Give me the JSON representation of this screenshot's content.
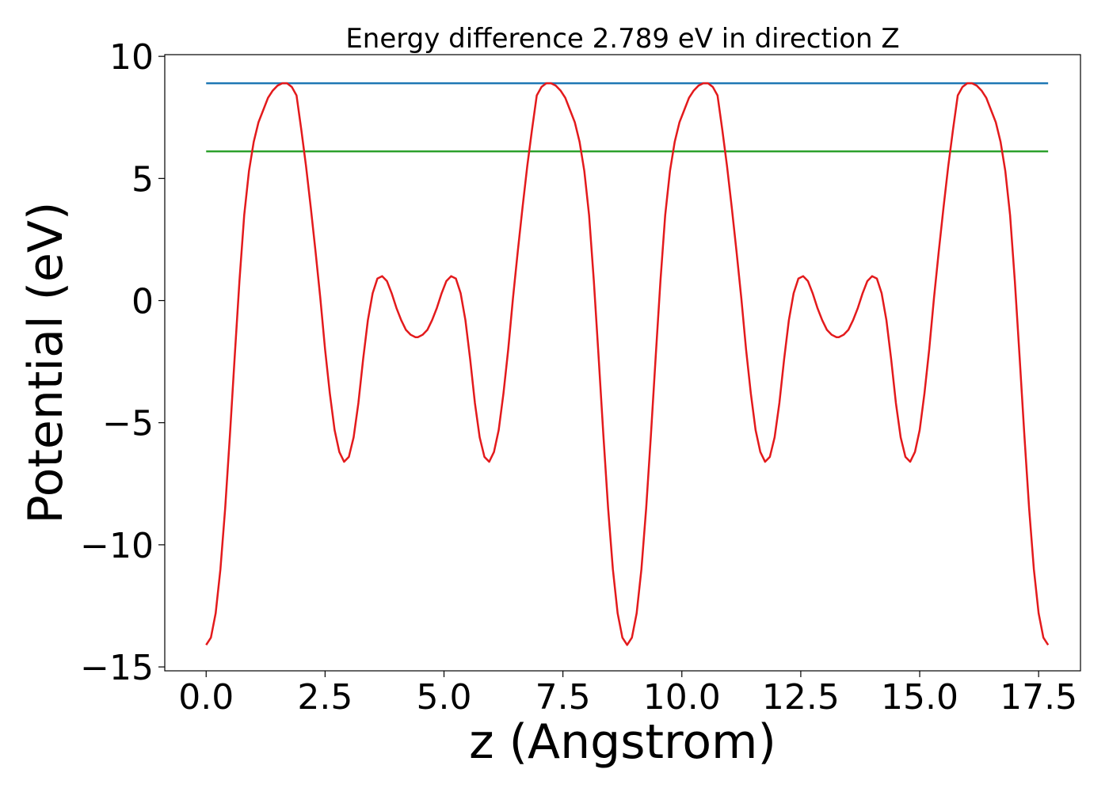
{
  "chart_data": {
    "type": "line",
    "title": "Energy difference 2.789 eV in direction Z",
    "xlabel": "z (Angstrom)",
    "ylabel": "Potential (eV)",
    "xlim": [
      -0.87,
      18.38
    ],
    "ylim": [
      -15.16,
      10.07
    ],
    "xticks": [
      {
        "value": 0,
        "label": "0.0"
      },
      2.5,
      {
        "value": 5,
        "label": "5.0"
      },
      7.5,
      {
        "value": 10,
        "label": "10.0"
      },
      12.5,
      {
        "value": 15,
        "label": "15.0"
      },
      17.5
    ],
    "yticks": [
      {
        "value": -15,
        "label": "−15"
      },
      {
        "value": -10,
        "label": "−10"
      },
      {
        "value": -5,
        "label": "−5"
      },
      0,
      5,
      10
    ],
    "grid": false,
    "series": [
      {
        "color": "#1f77b4",
        "x": [
          0,
          17.7
        ],
        "values": [
          8.9,
          8.9
        ]
      },
      {
        "color": "#2ca02c",
        "x": [
          0,
          17.7
        ],
        "values": [
          6.11,
          6.11
        ]
      },
      {
        "color": "#e31a1c",
        "x": [
          0,
          0.1,
          0.2,
          0.3,
          0.4,
          0.5,
          0.6,
          0.7,
          0.8,
          0.9,
          1.0,
          1.1,
          1.2,
          1.3,
          1.4,
          1.5,
          1.6,
          1.7,
          1.8,
          1.9,
          2.0,
          2.1,
          2.2,
          2.3,
          2.4,
          2.5,
          2.6,
          2.7,
          2.8,
          2.9,
          3.0,
          3.1,
          3.2,
          3.3,
          3.4,
          3.5,
          3.6,
          3.7,
          3.8,
          3.9,
          4.0,
          4.1,
          4.2,
          4.3,
          4.4,
          4.45,
          4.55,
          4.65,
          4.75,
          4.85,
          4.95,
          5.05,
          5.15,
          5.25,
          5.35,
          5.45,
          5.55,
          5.65,
          5.75,
          5.85,
          5.95,
          6.05,
          6.15,
          6.25,
          6.35,
          6.45,
          6.55,
          6.65,
          6.75,
          6.85,
          6.95,
          7.05,
          7.15,
          7.25,
          7.35,
          7.45,
          7.55,
          7.65,
          7.75,
          7.85,
          7.95,
          8.05,
          8.15,
          8.25,
          8.35,
          8.45,
          8.55,
          8.65,
          8.75,
          8.85,
          8.95,
          9.05,
          9.15,
          9.25,
          9.35,
          9.45,
          9.55,
          9.65,
          9.75,
          9.85,
          9.95,
          10.05,
          10.15,
          10.25,
          10.35,
          10.45,
          10.55,
          10.65,
          10.75,
          10.85,
          10.95,
          11.05,
          11.15,
          11.25,
          11.35,
          11.45,
          11.55,
          11.65,
          11.75,
          11.85,
          11.95,
          12.05,
          12.15,
          12.25,
          12.35,
          12.45,
          12.55,
          12.65,
          12.75,
          12.85,
          12.95,
          13.05,
          13.15,
          13.25,
          13.3,
          13.4,
          13.5,
          13.6,
          13.7,
          13.8,
          13.9,
          14.0,
          14.1,
          14.2,
          14.3,
          14.4,
          14.5,
          14.6,
          14.7,
          14.8,
          14.9,
          15.0,
          15.1,
          15.2,
          15.3,
          15.4,
          15.5,
          15.6,
          15.7,
          15.8,
          15.9,
          16.0,
          16.1,
          16.2,
          16.3,
          16.4,
          16.5,
          16.6,
          16.7,
          16.8,
          16.9,
          17.0,
          17.1,
          17.2,
          17.3,
          17.4,
          17.5,
          17.6,
          17.7
        ],
        "values": [
          -14.1,
          -13.8,
          -12.8,
          -11.0,
          -8.5,
          -5.5,
          -2.3,
          0.8,
          3.5,
          5.3,
          6.5,
          7.3,
          7.8,
          8.3,
          8.6,
          8.8,
          8.9,
          8.9,
          8.75,
          8.4,
          7.0,
          5.5,
          3.8,
          2.0,
          0.1,
          -2.0,
          -3.8,
          -5.3,
          -6.2,
          -6.6,
          -6.4,
          -5.6,
          -4.2,
          -2.4,
          -0.8,
          0.3,
          0.9,
          1.0,
          0.8,
          0.3,
          -0.3,
          -0.8,
          -1.2,
          -1.4,
          -1.5,
          -1.5,
          -1.4,
          -1.2,
          -0.8,
          -0.3,
          0.3,
          0.8,
          1.0,
          0.9,
          0.3,
          -0.8,
          -2.4,
          -4.2,
          -5.6,
          -6.4,
          -6.6,
          -6.2,
          -5.3,
          -3.8,
          -2.0,
          0.1,
          2.0,
          3.8,
          5.5,
          7.0,
          8.4,
          8.75,
          8.9,
          8.9,
          8.8,
          8.6,
          8.3,
          7.8,
          7.3,
          6.5,
          5.3,
          3.5,
          0.8,
          -2.3,
          -5.5,
          -8.5,
          -11.0,
          -12.8,
          -13.8,
          -14.1,
          -13.8,
          -12.8,
          -11.0,
          -8.5,
          -5.5,
          -2.3,
          0.8,
          3.5,
          5.3,
          6.5,
          7.3,
          7.8,
          8.3,
          8.6,
          8.8,
          8.9,
          8.9,
          8.75,
          8.4,
          7.0,
          5.5,
          3.8,
          2.0,
          0.1,
          -2.0,
          -3.8,
          -5.3,
          -6.2,
          -6.6,
          -6.4,
          -5.6,
          -4.2,
          -2.4,
          -0.8,
          0.3,
          0.9,
          1.0,
          0.8,
          0.3,
          -0.3,
          -0.8,
          -1.2,
          -1.4,
          -1.5,
          -1.5,
          -1.4,
          -1.2,
          -0.8,
          -0.3,
          0.3,
          0.8,
          1.0,
          0.9,
          0.3,
          -0.8,
          -2.4,
          -4.2,
          -5.6,
          -6.4,
          -6.6,
          -6.2,
          -5.3,
          -3.8,
          -2.0,
          0.1,
          2.0,
          3.8,
          5.5,
          7.0,
          8.4,
          8.75,
          8.9,
          8.9,
          8.8,
          8.6,
          8.3,
          7.8,
          7.3,
          6.5,
          5.3,
          3.5,
          0.8,
          -2.3,
          -5.5,
          -8.5,
          -11.0,
          -12.8,
          -13.8,
          -14.1
        ]
      }
    ]
  }
}
